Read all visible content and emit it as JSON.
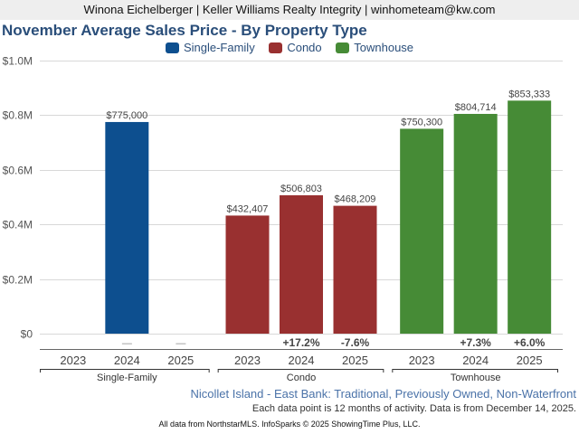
{
  "header": {
    "text": "Winona Eichelberger | Keller Williams Realty Integrity | winhometeam@kw.com"
  },
  "chart_data": {
    "type": "bar",
    "title": "November Average Sales Price - By Property Type",
    "xlabel": "",
    "ylabel": "",
    "ylim": [
      0,
      1000000
    ],
    "yticks": [
      {
        "value": 0,
        "label": "$0"
      },
      {
        "value": 200000,
        "label": "$0.2M"
      },
      {
        "value": 400000,
        "label": "$0.4M"
      },
      {
        "value": 600000,
        "label": "$0.6M"
      },
      {
        "value": 800000,
        "label": "$0.8M"
      },
      {
        "value": 1000000,
        "label": "$1.0M"
      }
    ],
    "grid": true,
    "legend_position": "top-center",
    "legend": [
      {
        "name": "Single-Family",
        "color": "#0d4f8f"
      },
      {
        "name": "Condo",
        "color": "#993030"
      },
      {
        "name": "Townhouse",
        "color": "#468b36"
      }
    ],
    "groups": [
      {
        "name": "Single-Family",
        "color": "#0d4f8f",
        "bars": [
          {
            "year": "2023",
            "value": null,
            "label": "",
            "change": ""
          },
          {
            "year": "2024",
            "value": 775000,
            "label": "$775,000",
            "change": "—"
          },
          {
            "year": "2025",
            "value": null,
            "label": "",
            "change": "—"
          }
        ]
      },
      {
        "name": "Condo",
        "color": "#993030",
        "bars": [
          {
            "year": "2023",
            "value": 432407,
            "label": "$432,407",
            "change": ""
          },
          {
            "year": "2024",
            "value": 506803,
            "label": "$506,803",
            "change": "+17.2%"
          },
          {
            "year": "2025",
            "value": 468209,
            "label": "$468,209",
            "change": "-7.6%"
          }
        ]
      },
      {
        "name": "Townhouse",
        "color": "#468b36",
        "bars": [
          {
            "year": "2023",
            "value": 750300,
            "label": "$750,300",
            "change": ""
          },
          {
            "year": "2024",
            "value": 804714,
            "label": "$804,714",
            "change": "+7.3%"
          },
          {
            "year": "2025",
            "value": 853333,
            "label": "$853,333",
            "change": "+6.0%"
          }
        ]
      }
    ]
  },
  "footer": {
    "location": "Nicollet Island - East Bank: Traditional, Previously Owned, Non-Waterfront",
    "note": "Each data point is 12 months of activity. Data is from December 14, 2025.",
    "source": "All data from NorthstarMLS. InfoSparks © 2025 ShowingTime Plus, LLC."
  }
}
